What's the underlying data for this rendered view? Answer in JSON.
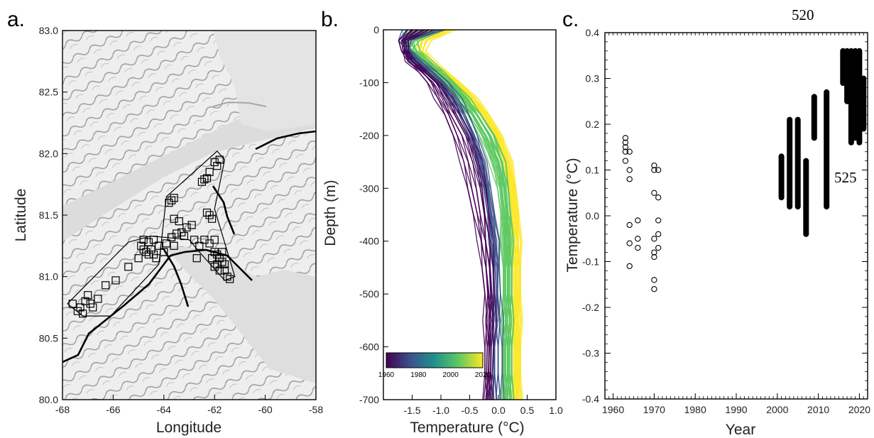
{
  "colors": {
    "viridis": [
      "#440154",
      "#3b528b",
      "#21918c",
      "#5ec962",
      "#fde725"
    ],
    "map_land": "#e9e9e9",
    "map_sea": "#cfcfcf"
  },
  "chart_data": [
    {
      "panel": "a.",
      "type": "scatter",
      "xlabel": "Longitude",
      "ylabel": "Latitude",
      "xlim": [
        -68,
        -58
      ],
      "ylim": [
        80.0,
        83.0
      ],
      "xticks": [
        "-68",
        "-66",
        "-64",
        "-62",
        "-60",
        "-58"
      ],
      "yticks": [
        "80.0",
        "80.5",
        "81.0",
        "81.5",
        "82.0",
        "82.5",
        "83.0"
      ],
      "marker": "square",
      "polygon": [
        [
          -67.8,
          80.78
        ],
        [
          -67.2,
          80.68
        ],
        [
          -66.1,
          80.68
        ],
        [
          -64.2,
          81.1
        ],
        [
          -63.9,
          81.65
        ],
        [
          -61.9,
          82.02
        ],
        [
          -61.6,
          81.95
        ],
        [
          -62.0,
          81.55
        ],
        [
          -61.2,
          81.0
        ],
        [
          -61.6,
          80.97
        ],
        [
          -62.6,
          81.2
        ],
        [
          -63.0,
          81.3
        ],
        [
          -64.5,
          81.33
        ],
        [
          -65.4,
          81.28
        ]
      ],
      "points": [
        [
          -67.6,
          80.78
        ],
        [
          -67.3,
          80.75
        ],
        [
          -67.1,
          80.8
        ],
        [
          -66.9,
          80.78
        ],
        [
          -67.4,
          80.72
        ],
        [
          -67.2,
          80.7
        ],
        [
          -66.8,
          80.75
        ],
        [
          -67.0,
          80.85
        ],
        [
          -66.6,
          80.82
        ],
        [
          -66.3,
          80.93
        ],
        [
          -65.9,
          80.97
        ],
        [
          -65.4,
          81.08
        ],
        [
          -65.0,
          81.15
        ],
        [
          -64.9,
          81.25
        ],
        [
          -64.8,
          81.22
        ],
        [
          -64.7,
          81.2
        ],
        [
          -64.6,
          81.18
        ],
        [
          -64.5,
          81.22
        ],
        [
          -64.4,
          81.18
        ],
        [
          -64.3,
          81.15
        ],
        [
          -64.2,
          81.25
        ],
        [
          -64.6,
          81.28
        ],
        [
          -64.4,
          81.3
        ],
        [
          -64.0,
          81.2
        ],
        [
          -63.7,
          81.32
        ],
        [
          -63.5,
          81.35
        ],
        [
          -63.3,
          81.36
        ],
        [
          -63.1,
          81.4
        ],
        [
          -62.9,
          81.42
        ],
        [
          -63.4,
          81.45
        ],
        [
          -63.6,
          81.47
        ],
        [
          -63.2,
          81.33
        ],
        [
          -62.8,
          81.3
        ],
        [
          -62.6,
          81.25
        ],
        [
          -62.4,
          81.3
        ],
        [
          -62.2,
          81.27
        ],
        [
          -62.0,
          81.3
        ],
        [
          -63.8,
          81.6
        ],
        [
          -63.7,
          81.62
        ],
        [
          -63.6,
          81.64
        ],
        [
          -62.2,
          81.5
        ],
        [
          -62.1,
          81.47
        ],
        [
          -62.3,
          81.52
        ],
        [
          -62.5,
          81.77
        ],
        [
          -62.4,
          81.79
        ],
        [
          -62.3,
          81.8
        ],
        [
          -62.2,
          81.85
        ],
        [
          -61.9,
          81.9
        ],
        [
          -61.8,
          81.95
        ],
        [
          -62.0,
          81.93
        ],
        [
          -62.0,
          81.2
        ],
        [
          -61.9,
          81.18
        ],
        [
          -61.8,
          81.15
        ],
        [
          -61.7,
          81.12
        ],
        [
          -61.9,
          81.1
        ],
        [
          -62.1,
          81.15
        ],
        [
          -62.0,
          81.08
        ],
        [
          -61.8,
          81.05
        ],
        [
          -61.6,
          81.05
        ],
        [
          -61.5,
          81.0
        ],
        [
          -61.4,
          80.98
        ],
        [
          -61.6,
          81.1
        ],
        [
          -61.7,
          81.2
        ],
        [
          -63.6,
          81.25
        ],
        [
          -63.9,
          81.27
        ],
        [
          -64.8,
          81.3
        ],
        [
          -62.7,
          81.15
        ]
      ]
    },
    {
      "panel": "b.",
      "type": "line",
      "xlabel": "Temperature (°C)",
      "ylabel": "Depth (m)",
      "xlim": [
        -2.0,
        1.0
      ],
      "ylim": [
        -700,
        0
      ],
      "xticks": [
        "-1.5",
        "-1.0",
        "-0.5",
        "0.0",
        "0.5",
        "1.0"
      ],
      "yticks": [
        "0",
        "-100",
        "-200",
        "-300",
        "-400",
        "-500",
        "-600",
        "-700"
      ],
      "colorbar": {
        "ticks": [
          "1960",
          "1980",
          "2000",
          "2020"
        ],
        "range": [
          1960,
          2020
        ]
      },
      "depths": [
        0,
        -20,
        -40,
        -60,
        -80,
        -100,
        -130,
        -160,
        -200,
        -250,
        -300,
        -350,
        -400,
        -450,
        -500,
        -550,
        -600,
        -650,
        -700
      ],
      "series": [
        {
          "year": 1962,
          "temps": [
            -1.4,
            -1.65,
            -1.62,
            -1.55,
            -1.35,
            -1.2,
            -1.05,
            -0.9,
            -0.75,
            -0.6,
            -0.5,
            -0.4,
            -0.3,
            -0.25,
            -0.2,
            -0.2,
            -0.2,
            -0.2,
            -0.2
          ]
        },
        {
          "year": 1964,
          "temps": [
            -1.2,
            -1.6,
            -1.6,
            -1.5,
            -1.3,
            -1.1,
            -0.95,
            -0.8,
            -0.6,
            -0.45,
            -0.35,
            -0.28,
            -0.22,
            -0.18,
            -0.15,
            -0.15,
            -0.16,
            -0.17,
            -0.18
          ]
        },
        {
          "year": 1967,
          "temps": [
            -1.5,
            -1.7,
            -1.65,
            -1.5,
            -1.25,
            -1.05,
            -0.85,
            -0.7,
            -0.5,
            -0.35,
            -0.25,
            -0.2,
            -0.15,
            -0.12,
            -0.1,
            -0.1,
            -0.12,
            -0.14,
            -0.15
          ]
        },
        {
          "year": 1969,
          "temps": [
            -1.0,
            -1.55,
            -1.6,
            -1.45,
            -1.2,
            -1.0,
            -0.8,
            -0.62,
            -0.45,
            -0.3,
            -0.2,
            -0.12,
            -0.06,
            -0.04,
            -0.05,
            -0.08,
            -0.1,
            -0.1,
            -0.1
          ]
        },
        {
          "year": 1970,
          "temps": [
            -1.3,
            -1.62,
            -1.58,
            -1.4,
            -1.2,
            -1.02,
            -0.82,
            -0.65,
            -0.48,
            -0.32,
            -0.22,
            -0.15,
            -0.1,
            -0.06,
            -0.05,
            -0.04,
            -0.04,
            -0.04,
            -0.04
          ]
        },
        {
          "year": 1971,
          "temps": [
            -1.6,
            -1.7,
            -1.55,
            -1.35,
            -1.1,
            -0.9,
            -0.7,
            -0.55,
            -0.4,
            -0.27,
            -0.17,
            -0.1,
            -0.05,
            -0.02,
            0.0,
            0.02,
            0.03,
            0.03,
            0.03
          ]
        },
        {
          "year": 2002,
          "temps": [
            -1.5,
            -1.6,
            -1.55,
            -1.4,
            -1.15,
            -0.95,
            -0.72,
            -0.5,
            -0.3,
            -0.1,
            0.02,
            0.08,
            0.1,
            0.12,
            0.12,
            0.12,
            0.12,
            0.12,
            0.12
          ]
        },
        {
          "year": 2004,
          "temps": [
            -1.2,
            -1.5,
            -1.6,
            -1.45,
            -1.2,
            -0.98,
            -0.72,
            -0.48,
            -0.25,
            -0.05,
            0.06,
            0.1,
            0.12,
            0.13,
            0.13,
            0.13,
            0.13,
            0.13,
            0.13
          ]
        },
        {
          "year": 2006,
          "temps": [
            -1.4,
            -1.55,
            -1.5,
            -1.3,
            -1.05,
            -0.85,
            -0.6,
            -0.4,
            -0.18,
            0.0,
            0.1,
            0.14,
            0.16,
            0.16,
            0.16,
            0.16,
            0.16,
            0.16,
            0.16
          ]
        },
        {
          "year": 2007,
          "temps": [
            -1.0,
            -1.4,
            -1.55,
            -1.4,
            -1.15,
            -0.9,
            -0.65,
            -0.42,
            -0.2,
            -0.02,
            0.08,
            0.12,
            0.14,
            0.15,
            0.15,
            0.15,
            0.15,
            0.15,
            0.15
          ]
        },
        {
          "year": 2010,
          "temps": [
            -1.3,
            -1.45,
            -1.4,
            -1.2,
            -0.98,
            -0.8,
            -0.55,
            -0.35,
            -0.12,
            0.05,
            0.13,
            0.17,
            0.18,
            0.19,
            0.19,
            0.19,
            0.19,
            0.19,
            0.19
          ]
        },
        {
          "year": 2012,
          "temps": [
            -1.6,
            -1.6,
            -1.45,
            -1.25,
            -1.02,
            -0.82,
            -0.56,
            -0.34,
            -0.1,
            0.06,
            0.14,
            0.18,
            0.2,
            0.2,
            0.2,
            0.2,
            0.2,
            0.2,
            0.2
          ]
        },
        {
          "year": 2016,
          "temps": [
            -1.1,
            -1.35,
            -1.4,
            -1.25,
            -1.0,
            -0.78,
            -0.5,
            -0.28,
            -0.05,
            0.12,
            0.22,
            0.26,
            0.28,
            0.29,
            0.3,
            0.3,
            0.3,
            0.3,
            0.3
          ]
        },
        {
          "year": 2018,
          "temps": [
            -0.9,
            -1.3,
            -1.35,
            -1.2,
            -0.95,
            -0.72,
            -0.45,
            -0.22,
            0.0,
            0.16,
            0.25,
            0.3,
            0.32,
            0.33,
            0.33,
            0.33,
            0.33,
            0.33,
            0.33
          ]
        },
        {
          "year": 2019,
          "temps": [
            -1.2,
            -1.45,
            -1.4,
            -1.2,
            -0.98,
            -0.75,
            -0.48,
            -0.25,
            -0.02,
            0.14,
            0.24,
            0.28,
            0.31,
            0.32,
            0.32,
            0.32,
            0.32,
            0.32,
            0.32
          ]
        },
        {
          "year": 2020,
          "temps": [
            -0.8,
            -1.2,
            -1.3,
            -1.15,
            -0.92,
            -0.7,
            -0.42,
            -0.2,
            0.03,
            0.18,
            0.27,
            0.32,
            0.34,
            0.35,
            0.35,
            0.35,
            0.35,
            0.35,
            0.35
          ]
        }
      ]
    },
    {
      "panel": "c.",
      "type": "scatter",
      "xlabel": "Year",
      "ylabel": "Temperature (°C)",
      "xlim": [
        1958,
        2022
      ],
      "ylim": [
        -0.4,
        0.4
      ],
      "xticks": [
        "1960",
        "1970",
        "1980",
        "1990",
        "2000",
        "2010",
        "2020"
      ],
      "yticks": [
        "0.4",
        "0.3",
        "0.2",
        "0.1",
        "0.0",
        "-0.1",
        "-0.2",
        "-0.3",
        "-0.4"
      ],
      "annotations": [
        "520",
        "525"
      ],
      "points": [
        [
          1963,
          0.17
        ],
        [
          1963,
          0.16
        ],
        [
          1963,
          0.15
        ],
        [
          1963,
          0.14
        ],
        [
          1963,
          0.12
        ],
        [
          1964,
          0.14
        ],
        [
          1964,
          0.1
        ],
        [
          1964,
          0.08
        ],
        [
          1964,
          -0.02
        ],
        [
          1964,
          -0.06
        ],
        [
          1964,
          -0.11
        ],
        [
          1966,
          -0.01
        ],
        [
          1966,
          -0.05
        ],
        [
          1966,
          -0.07
        ],
        [
          1970,
          0.11
        ],
        [
          1970,
          0.1
        ],
        [
          1970,
          0.05
        ],
        [
          1970,
          -0.05
        ],
        [
          1970,
          -0.08
        ],
        [
          1970,
          -0.09
        ],
        [
          1970,
          -0.14
        ],
        [
          1970,
          -0.16
        ],
        [
          1971,
          0.1
        ],
        [
          1971,
          0.04
        ],
        [
          1971,
          -0.01
        ],
        [
          1971,
          -0.04
        ],
        [
          1971,
          -0.07
        ]
      ],
      "ranges": [
        {
          "year": 2001,
          "min": 0.04,
          "max": 0.13
        },
        {
          "year": 2003,
          "min": 0.02,
          "max": 0.21
        },
        {
          "year": 2005,
          "min": 0.02,
          "max": 0.21
        },
        {
          "year": 2007,
          "min": -0.04,
          "max": 0.12
        },
        {
          "year": 2009,
          "min": 0.17,
          "max": 0.26
        },
        {
          "year": 2012,
          "min": 0.02,
          "max": 0.27
        },
        {
          "year": 2016,
          "min": 0.29,
          "max": 0.36
        },
        {
          "year": 2017,
          "min": 0.25,
          "max": 0.36
        },
        {
          "year": 2018,
          "min": 0.16,
          "max": 0.36
        },
        {
          "year": 2019,
          "min": 0.17,
          "max": 0.36
        },
        {
          "year": 2020,
          "min": 0.16,
          "max": 0.36
        },
        {
          "year": 2021,
          "min": 0.19,
          "max": 0.3
        }
      ]
    }
  ]
}
